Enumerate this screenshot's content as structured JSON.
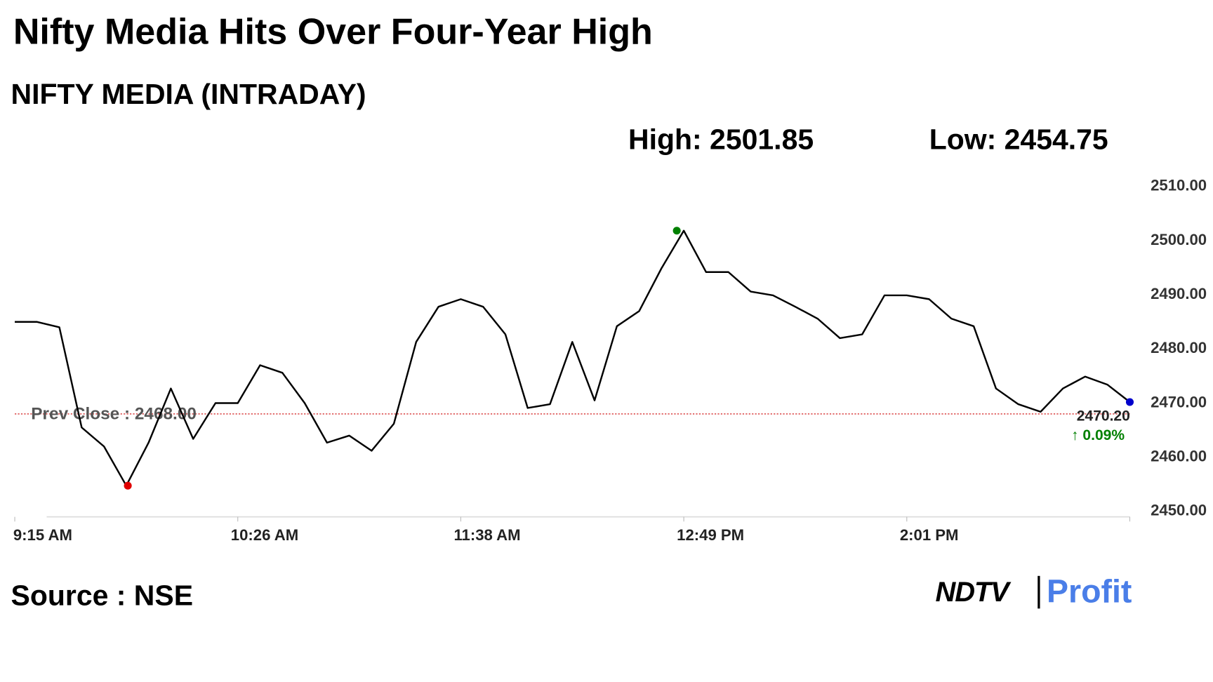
{
  "chart_data": {
    "type": "line",
    "title": "Nifty Media Hits Over Four-Year High",
    "subtitle": "NIFTY MEDIA (INTRADAY)",
    "high": {
      "value": 2501.85,
      "label": "High: 2501.85",
      "color": "#008000"
    },
    "low": {
      "value": 2454.75,
      "label": "Low: 2454.75",
      "color": "#e00000"
    },
    "x": [
      "9:15 AM",
      null,
      null,
      null,
      null,
      null,
      null,
      null,
      null,
      null,
      "10:26 AM",
      null,
      null,
      null,
      null,
      null,
      null,
      null,
      null,
      null,
      "11:38 AM",
      null,
      null,
      null,
      null,
      null,
      null,
      null,
      null,
      null,
      "12:49 PM",
      null,
      null,
      null,
      null,
      null,
      null,
      null,
      null,
      null,
      "2:01 PM",
      null,
      null,
      null,
      null,
      null,
      null,
      null,
      null,
      null,
      null
    ],
    "series": [
      {
        "color": "#000000",
        "end_color": "#0000cc",
        "values": [
          2485,
          2485,
          2484,
          2465.5,
          2462,
          2454.75,
          2462.7,
          2472.7,
          2463.4,
          2470,
          2470,
          2477,
          2475.6,
          2470,
          2462.7,
          2464,
          2461.2,
          2466.2,
          2481.3,
          2487.8,
          2489.2,
          2487.8,
          2482.7,
          2469.1,
          2469.8,
          2481.3,
          2470.5,
          2484.2,
          2487,
          2494.9,
          2501.85,
          2494.2,
          2494.2,
          2490.6,
          2489.9,
          2487.8,
          2485.6,
          2482,
          2482.7,
          2489.9,
          2489.9,
          2489.2,
          2485.6,
          2484.2,
          2472.7,
          2469.8,
          2468.4,
          2472.7,
          2474.9,
          2473.4,
          2470.2
        ],
        "value_labels": [
          null,
          null,
          null,
          null,
          null,
          null,
          null,
          null,
          null,
          null,
          null,
          null,
          null,
          null,
          null,
          null,
          null,
          null,
          null,
          null,
          null,
          null,
          null,
          null,
          null,
          null,
          null,
          null,
          null,
          null,
          null,
          null,
          null,
          null,
          null,
          null,
          null,
          null,
          null,
          null,
          null,
          null,
          null,
          null,
          null,
          null,
          null,
          null,
          null,
          null,
          "2470.20"
        ]
      }
    ],
    "change": {
      "value": 0.09,
      "label": "↑ 0.09%",
      "color": "#008000"
    },
    "reference_line": {
      "value": 2468,
      "label": "Prev Close : 2468.00",
      "color": "#cc0000"
    },
    "ylim": [
      2450,
      2510
    ],
    "yticks": [
      {
        "value": 2450,
        "label": "2450.00"
      },
      {
        "value": 2460,
        "label": "2460.00"
      },
      {
        "value": 2470,
        "label": "2470.00"
      },
      {
        "value": 2480,
        "label": "2480.00"
      },
      {
        "value": 2490,
        "label": "2490.00"
      },
      {
        "value": 2500,
        "label": "2500.00"
      },
      {
        "value": 2510,
        "label": "2510.00"
      }
    ],
    "source": "Source : NSE",
    "logo": [
      "NDTV",
      "Profit"
    ]
  }
}
